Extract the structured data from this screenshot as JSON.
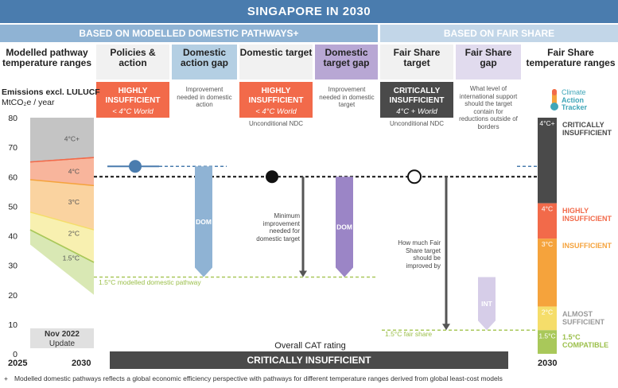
{
  "title": "SINGAPORE IN 2030",
  "bands": {
    "left": "BASED ON MODELLED DOMESTIC PATHWAYS+",
    "right": "BASED ON FAIR SHARE"
  },
  "columns": {
    "modelled": "Modelled pathway temperature ranges",
    "policies": "Policies & action",
    "dom_gap": "Domestic action gap",
    "dom_target": "Domestic target",
    "dom_target_gap": "Domestic target gap",
    "fair_target": "Fair Share target",
    "fair_gap": "Fair Share gap",
    "fair_ranges": "Fair Share temperature ranges"
  },
  "badges": {
    "policies": {
      "label": "HIGHLY INSUFFICIENT",
      "sub": "< 4°C World",
      "color": "#f26a4a"
    },
    "dom_target": {
      "label": "HIGHLY INSUFFICIENT",
      "sub": "< 4°C World",
      "color": "#f26a4a"
    },
    "fair_target": {
      "label": "CRITICALLY INSUFFICIENT",
      "sub": "4°C + World",
      "color": "#4a4a4a"
    }
  },
  "notes": {
    "dom_gap": "Improvement needed in domestic action",
    "dom_target_gap": "Improvement needed in domestic target",
    "fair_gap": "What level of international support should the target contain for reductions outside of borders",
    "uncond_1": "Unconditional NDC",
    "uncond_2": "Unconditional NDC",
    "min_improvement": "Minimum improvement needed for domestic target",
    "fair_improve": "How much Fair Share target should be improved by",
    "pathway_label": "1.5°C modelled domestic pathway",
    "fair_label": "1.5°C fair share",
    "nov": "Nov 2022",
    "update": "Update",
    "overall": "Overall CAT rating",
    "dom_bar": "DOM",
    "int_bar": "INT"
  },
  "logo": {
    "line1": "Climate",
    "line2": "Action",
    "line3": "Tracker"
  },
  "rating": "CRITICALLY INSUFFICIENT",
  "footnote": "Modelled domestic pathways reflects a global economic efficiency perspective with pathways for different temperature ranges derived from global least-cost models",
  "footnote_mark": "+",
  "axis": {
    "title_1": "Emissions excl. LULUCF",
    "title_2": "MtCO₂e / year",
    "x_start": "2025",
    "x_end": "2030",
    "x_fair": "2030"
  },
  "chart_data": {
    "type": "area",
    "ylim": [
      0,
      80
    ],
    "yticks": [
      0,
      10,
      20,
      30,
      40,
      50,
      60,
      70,
      80
    ],
    "x": [
      "2025",
      "2030"
    ],
    "modelled_bands": [
      {
        "name": "4°C+",
        "color": "#c4c4c4",
        "lower": [
          65,
          66.5
        ],
        "upper": [
          80,
          80
        ]
      },
      {
        "name": "4°C",
        "color": "#f8b59c",
        "lower": [
          59,
          57
        ],
        "upper": [
          65,
          66.5
        ]
      },
      {
        "name": "3°C",
        "color": "#fad3a0",
        "lower": [
          48,
          42
        ],
        "upper": [
          59,
          57
        ]
      },
      {
        "name": "2°C",
        "color": "#f8f0b0",
        "lower": [
          42,
          31
        ],
        "upper": [
          48,
          42
        ]
      },
      {
        "name": "1.5°C",
        "color": "#d9e8b4",
        "lower": [
          37,
          20
        ],
        "upper": [
          42,
          31
        ]
      }
    ],
    "pathway_line_value": 26,
    "fair_line_value": 8,
    "policies_value": 63.5,
    "target_value": 60,
    "fair_target_value": 60,
    "dom_gap_range": [
      63.5,
      26
    ],
    "dom_target_gap_range": [
      60,
      26
    ],
    "int_gap_range": [
      26,
      8
    ],
    "fair_scale": [
      {
        "name": "4°C+",
        "rating": "CRITICALLY INSUFFICIENT",
        "from": 51,
        "to": 80,
        "color": "#4a4a4a"
      },
      {
        "name": "4°C",
        "rating": "HIGHLY INSUFFICIENT",
        "from": 39,
        "to": 51,
        "color": "#f26a4a"
      },
      {
        "name": "3°C",
        "rating": "INSUFFICIENT",
        "from": 16,
        "to": 39,
        "color": "#f5a33c"
      },
      {
        "name": "2°C",
        "rating": "ALMOST SUFFICIENT",
        "from": 8,
        "to": 16,
        "color": "#f5dd6a"
      },
      {
        "name": "1.5°C",
        "rating": "1.5°C COMPATIBLE",
        "from": 0,
        "to": 8,
        "color": "#a9c85a"
      }
    ]
  }
}
